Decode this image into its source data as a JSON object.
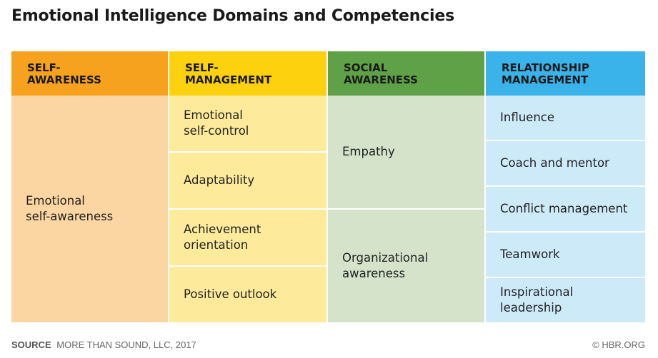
{
  "title": "Emotional Intelligence Domains and Competencies",
  "colors": {
    "header_orange": "#F7A21E",
    "header_yellow": "#FDD10D",
    "header_green": "#5FA146",
    "header_blue": "#3AB3EB",
    "body_orange": "#FCD6A2",
    "body_yellow": "#FDEA9A",
    "body_green": "#D5E3CB",
    "body_blue": "#CDEAF9"
  },
  "domains": [
    {
      "header_line1": "SELF-",
      "header_line2": "AWARENESS",
      "competencies": [
        {
          "line1": "Emotional",
          "line2": "self-awareness"
        }
      ]
    },
    {
      "header_line1": "SELF-",
      "header_line2": "MANAGEMENT",
      "competencies": [
        {
          "line1": "Emotional",
          "line2": "self-control"
        },
        {
          "line1": "Adaptability",
          "line2": ""
        },
        {
          "line1": "Achievement",
          "line2": "orientation"
        },
        {
          "line1": "Positive outlook",
          "line2": ""
        }
      ]
    },
    {
      "header_line1": "SOCIAL",
      "header_line2": "AWARENESS",
      "competencies": [
        {
          "line1": "Empathy",
          "line2": ""
        },
        {
          "line1": "Organizational",
          "line2": "awareness"
        }
      ]
    },
    {
      "header_line1": "RELATIONSHIP",
      "header_line2": "MANAGEMENT",
      "competencies": [
        {
          "line1": "Influence",
          "line2": ""
        },
        {
          "line1": "Coach and mentor",
          "line2": ""
        },
        {
          "line1": "Conflict management",
          "line2": ""
        },
        {
          "line1": "Teamwork",
          "line2": ""
        },
        {
          "line1": "Inspirational",
          "line2": "leadership"
        }
      ]
    }
  ],
  "footer": {
    "source_label": "SOURCE",
    "source_text": "MORE THAN SOUND, LLC, 2017",
    "credit": "© HBR.ORG"
  }
}
